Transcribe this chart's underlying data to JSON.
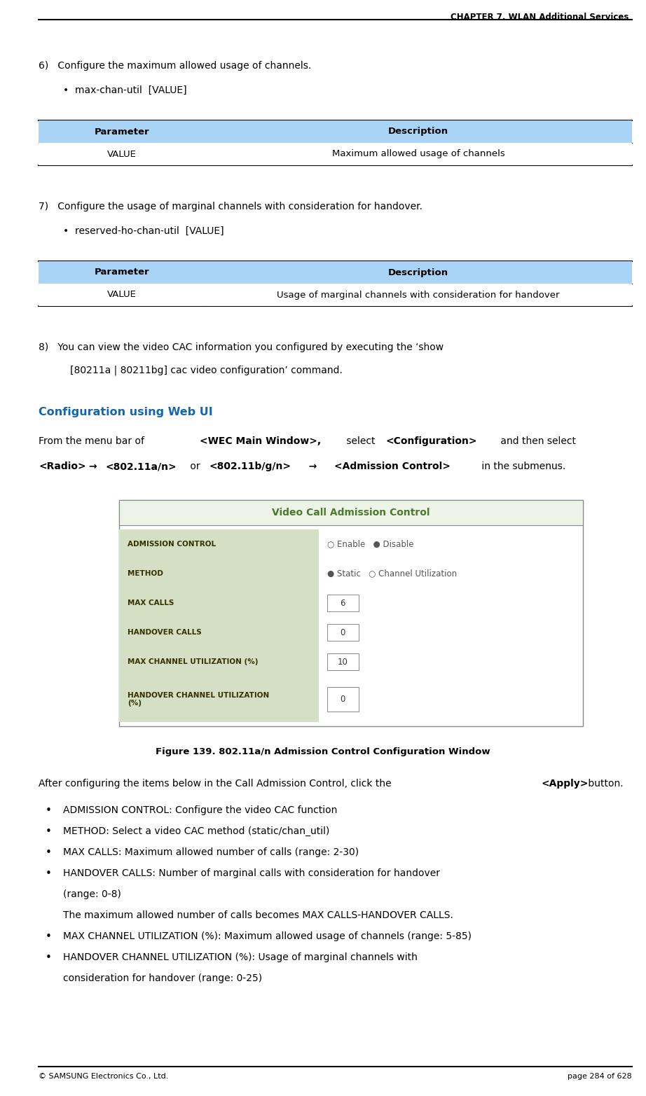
{
  "page_width": 9.22,
  "page_height": 15.65,
  "dpi": 100,
  "bg_color": "#ffffff",
  "header_text": "CHAPTER 7. WLAN Additional Services",
  "footer_left": "© SAMSUNG Electronics Co., Ltd.",
  "footer_right": "page 284 of 628",
  "table_header_color": "#aad4f5",
  "table_border_color": "#000000",
  "table1_headers": [
    "Parameter",
    "Description"
  ],
  "table1_rows": [
    [
      "VALUE",
      "Maximum allowed usage of channels"
    ]
  ],
  "table2_headers": [
    "Parameter",
    "Description"
  ],
  "table2_rows": [
    [
      "VALUE",
      "Usage of marginal channels with consideration for handover"
    ]
  ],
  "config_web_title": "Configuration using Web UI",
  "config_web_color": "#1465b0",
  "figure_caption": "Figure 139. 802.11a/n Admission Control Configuration Window",
  "ui_title": "Video Call Admission Control",
  "ui_title_color": "#4a7a2e",
  "ui_title_bg": "#e8f0e0",
  "ui_label_color": "#d8e8c8",
  "ui_border_color": "#888888",
  "ui_rows": [
    [
      "ADMISSION CONTROL",
      "○ Enable   ● Disable"
    ],
    [
      "METHOD",
      "● Static   ○ Channel Utilization"
    ],
    [
      "MAX CALLS",
      "6"
    ],
    [
      "HANDOVER CALLS",
      "0"
    ],
    [
      "MAX CHANNEL UTILIZATION (%)",
      "10"
    ],
    [
      "HANDOVER CHANNEL UTILIZATION\n(%)",
      "0"
    ]
  ],
  "bullets": [
    "ADMISSION CONTROL: Configure the video CAC function",
    "METHOD: Select a video CAC method (static/chan_util)",
    "MAX CALLS: Maximum allowed number of calls (range: 2-30)",
    "HANDOVER CALLS: Number of marginal calls with consideration for handover\n(range: 0-8)\nThe maximum allowed number of calls becomes MAX CALLS-HANDOVER CALLS.",
    "MAX CHANNEL UTILIZATION (%): Maximum allowed usage of channels (range: 5-85)",
    "HANDOVER CHANNEL UTILIZATION (%): Usage of marginal channels with\nconsideration for handover (range: 0-25)"
  ]
}
